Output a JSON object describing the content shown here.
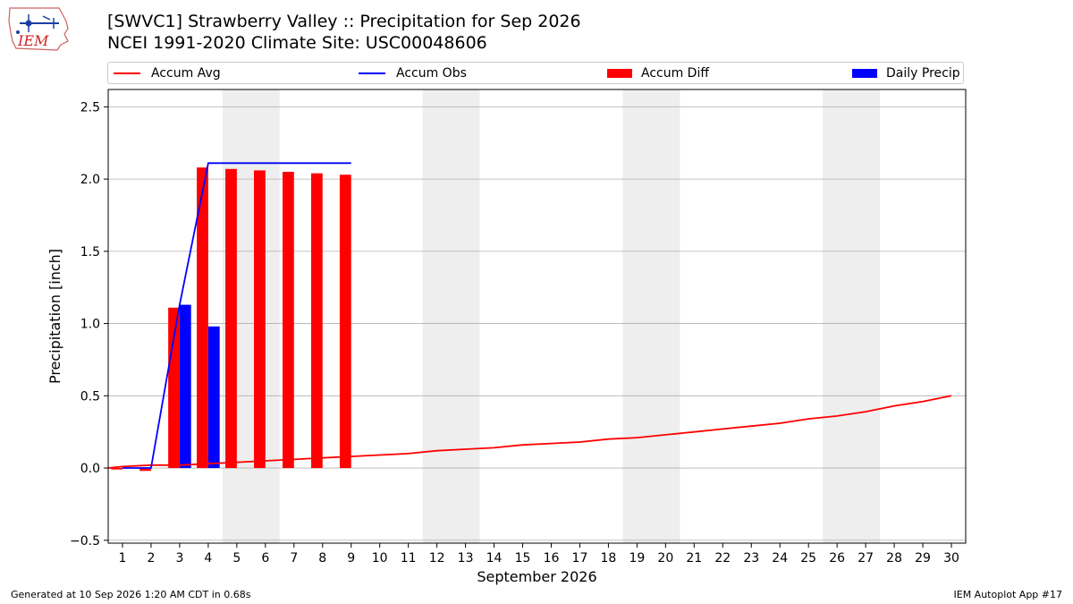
{
  "header": {
    "title_line1": "[SWVC1] Strawberry Valley :: Precipitation for Sep 2026",
    "title_line2": "NCEI 1991-2020 Climate Site: USC00048606",
    "logo_text": "IEM"
  },
  "footer": {
    "generated": "Generated at 10 Sep 2026 1:20 AM CDT in 0.68s",
    "app": "IEM Autoplot App #17"
  },
  "colors": {
    "accum_avg": "#ff0000",
    "accum_obs": "#0000ff",
    "accum_diff": "#ff0000",
    "daily_precip": "#0000ff",
    "weekend_band": "#eeeeee",
    "grid": "#b0b0b0"
  },
  "chart_data": {
    "type": "bar",
    "title": "[SWVC1] Strawberry Valley :: Precipitation for Sep 2026",
    "xlabel": "September 2026",
    "ylabel": "Precipitation [inch]",
    "ylim": [
      -0.52,
      2.62
    ],
    "xlim": [
      0.5,
      30.5
    ],
    "yticks": [
      -0.5,
      0.0,
      0.5,
      1.0,
      1.5,
      2.0,
      2.5
    ],
    "ytick_labels": [
      "−0.5",
      "0.0",
      "0.5",
      "1.0",
      "1.5",
      "2.0",
      "2.5"
    ],
    "x": [
      1,
      2,
      3,
      4,
      5,
      6,
      7,
      8,
      9,
      10,
      11,
      12,
      13,
      14,
      15,
      16,
      17,
      18,
      19,
      20,
      21,
      22,
      23,
      24,
      25,
      26,
      27,
      28,
      29,
      30
    ],
    "grid": "horizontal",
    "legend_position": "top",
    "weekend_bands": [
      [
        4.5,
        6.5
      ],
      [
        11.5,
        13.5
      ],
      [
        18.5,
        20.5
      ],
      [
        25.5,
        27.5
      ]
    ],
    "series": [
      {
        "name": "Accum Avg",
        "kind": "line",
        "x": [
          0.5,
          1,
          2,
          3,
          4,
          5,
          6,
          7,
          8,
          9,
          10,
          11,
          12,
          13,
          14,
          15,
          16,
          17,
          18,
          19,
          20,
          21,
          22,
          23,
          24,
          25,
          26,
          27,
          28,
          29,
          30
        ],
        "values": [
          0.0,
          0.01,
          0.02,
          0.02,
          0.03,
          0.04,
          0.05,
          0.06,
          0.07,
          0.08,
          0.09,
          0.1,
          0.12,
          0.13,
          0.14,
          0.16,
          0.17,
          0.18,
          0.2,
          0.21,
          0.23,
          0.25,
          0.27,
          0.29,
          0.31,
          0.34,
          0.36,
          0.39,
          0.43,
          0.46,
          0.5
        ]
      },
      {
        "name": "Accum Obs",
        "kind": "line",
        "x": [
          1,
          2,
          3,
          4,
          5,
          6,
          7,
          8,
          9
        ],
        "values": [
          0.0,
          0.0,
          1.13,
          2.11,
          2.11,
          2.11,
          2.11,
          2.11,
          2.11
        ]
      },
      {
        "name": "Accum Diff",
        "kind": "bar",
        "x": [
          1,
          2,
          3,
          4,
          5,
          6,
          7,
          8,
          9
        ],
        "values": [
          -0.01,
          -0.02,
          1.11,
          2.08,
          2.07,
          2.06,
          2.05,
          2.04,
          2.03
        ]
      },
      {
        "name": "Daily Precip",
        "kind": "bar",
        "x": [
          1,
          2,
          3,
          4,
          5,
          6,
          7,
          8,
          9
        ],
        "values": [
          0.0,
          0.0,
          1.13,
          0.98,
          0.0,
          0.0,
          0.0,
          0.0,
          0.0
        ]
      }
    ]
  }
}
